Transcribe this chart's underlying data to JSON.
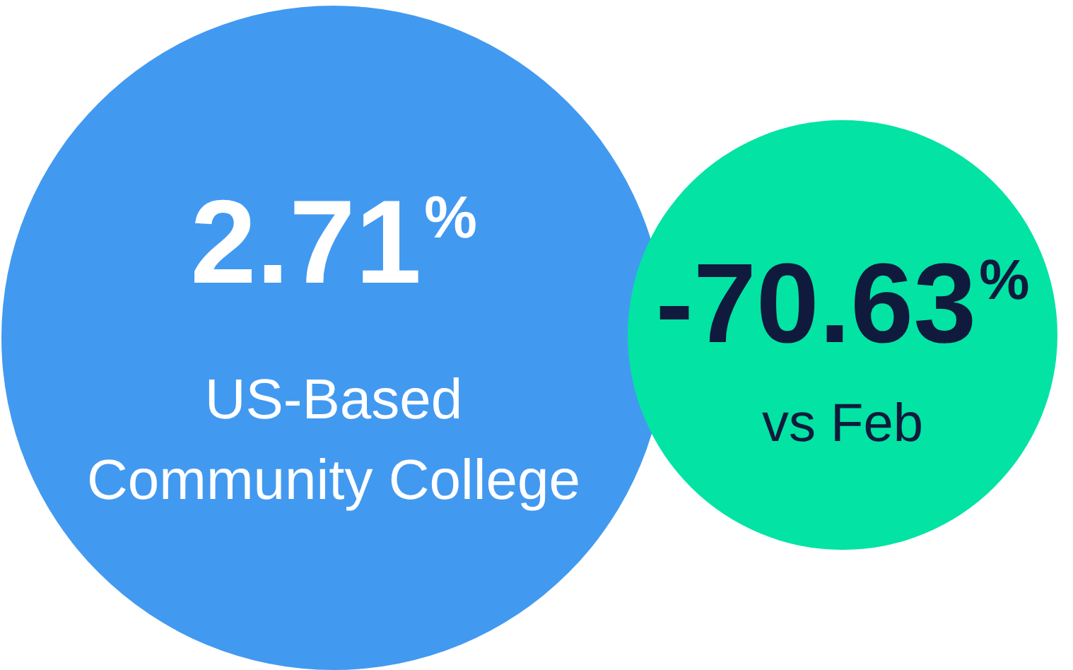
{
  "chart_data": {
    "type": "other",
    "categories": [
      "US-Based\nCommunity College",
      "vs Feb"
    ],
    "values": [
      2.71,
      -70.63
    ],
    "value_labels": [
      "2.71%",
      "-70.63%"
    ],
    "colors": [
      "#4299f0",
      "#03e3a3"
    ]
  }
}
